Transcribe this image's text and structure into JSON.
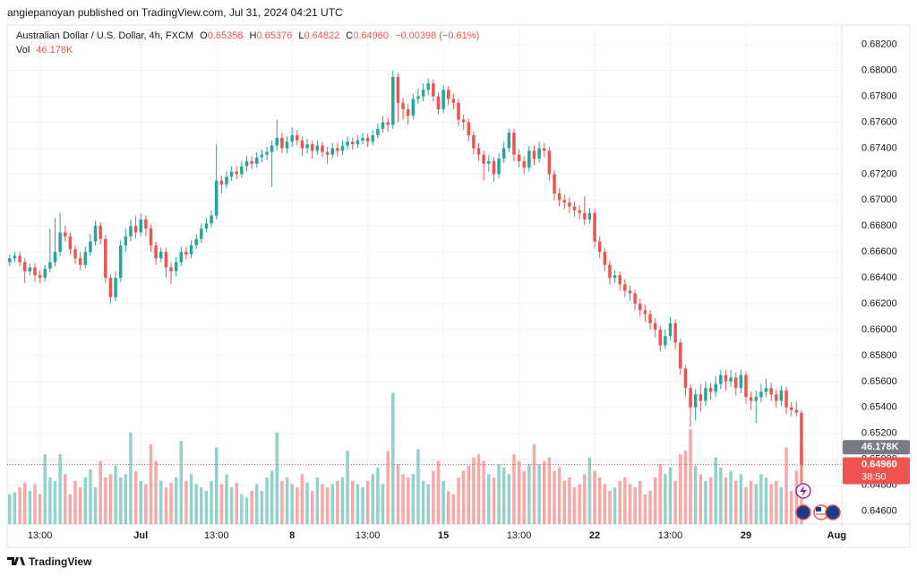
{
  "header": {
    "publisher": "angiepanoyan published on TradingView.com, Jul 31, 2024 04:21 UTC"
  },
  "chart_data": {
    "type": "candlestick",
    "title": "Australian Dollar / U.S. Dollar, 4h, FXCM",
    "legend": {
      "open_label": "O",
      "open": "0.65358",
      "high_label": "H",
      "high": "0.65376",
      "low_label": "L",
      "low": "0.64822",
      "close_label": "C",
      "close": "0.64960",
      "change": "−0.00398 (−0.61%)",
      "volume_label": "Vol",
      "volume": "46.178K"
    },
    "up_color": "#26a69a",
    "down_color": "#ef5350",
    "ylim": [
      0.645,
      0.6835
    ],
    "yticks": [
      {
        "value": 0.646,
        "label": "0.64600"
      },
      {
        "value": 0.648,
        "label": "0.64800"
      },
      {
        "value": 0.65,
        "label": "0.65000"
      },
      {
        "value": 0.652,
        "label": "0.65200"
      },
      {
        "value": 0.654,
        "label": "0.65400"
      },
      {
        "value": 0.656,
        "label": "0.65600"
      },
      {
        "value": 0.658,
        "label": "0.65800"
      },
      {
        "value": 0.66,
        "label": "0.66000"
      },
      {
        "value": 0.662,
        "label": "0.66200"
      },
      {
        "value": 0.664,
        "label": "0.66400"
      },
      {
        "value": 0.666,
        "label": "0.66600"
      },
      {
        "value": 0.668,
        "label": "0.66800"
      },
      {
        "value": 0.67,
        "label": "0.67000"
      },
      {
        "value": 0.672,
        "label": "0.67200"
      },
      {
        "value": 0.674,
        "label": "0.67400"
      },
      {
        "value": 0.676,
        "label": "0.67600"
      },
      {
        "value": 0.678,
        "label": "0.67800"
      },
      {
        "value": 0.68,
        "label": "0.68000"
      },
      {
        "value": 0.682,
        "label": "0.68200"
      }
    ],
    "xlim": [
      -0.5,
      165
    ],
    "xticks": [
      {
        "value": 6,
        "label": "13:00"
      },
      {
        "value": 26,
        "label": "Jul"
      },
      {
        "value": 41,
        "label": "13:00"
      },
      {
        "value": 56,
        "label": "8"
      },
      {
        "value": 71,
        "label": "13:00"
      },
      {
        "value": 86,
        "label": "15"
      },
      {
        "value": 101,
        "label": "13:00"
      },
      {
        "value": 116,
        "label": "22"
      },
      {
        "value": 131,
        "label": "13:00"
      },
      {
        "value": 146,
        "label": "29"
      },
      {
        "value": 164,
        "label": "Aug"
      }
    ],
    "grid": true,
    "volume_lim": [
      0,
      300000
    ],
    "volume_last_label": "46.178K",
    "last_price_label": "0.64960",
    "countdown": "38:50",
    "ohlc": [
      [
        0.6652,
        0.6658,
        0.6649,
        0.6655
      ],
      [
        0.6655,
        0.666,
        0.6652,
        0.6657
      ],
      [
        0.6657,
        0.666,
        0.6649,
        0.6652
      ],
      [
        0.6652,
        0.6655,
        0.6636,
        0.6645
      ],
      [
        0.6645,
        0.6651,
        0.6642,
        0.6648
      ],
      [
        0.6648,
        0.6651,
        0.6637,
        0.6642
      ],
      [
        0.6642,
        0.6646,
        0.6636,
        0.664
      ],
      [
        0.664,
        0.665,
        0.6637,
        0.6647
      ],
      [
        0.6647,
        0.6678,
        0.6644,
        0.6652
      ],
      [
        0.6652,
        0.6686,
        0.6649,
        0.666
      ],
      [
        0.666,
        0.669,
        0.6657,
        0.6675
      ],
      [
        0.6675,
        0.668,
        0.6668,
        0.6672
      ],
      [
        0.6672,
        0.6675,
        0.6658,
        0.6662
      ],
      [
        0.6662,
        0.6665,
        0.6651,
        0.6655
      ],
      [
        0.6655,
        0.666,
        0.6646,
        0.665
      ],
      [
        0.665,
        0.6664,
        0.6647,
        0.666
      ],
      [
        0.666,
        0.6674,
        0.6657,
        0.6668
      ],
      [
        0.6668,
        0.6684,
        0.6665,
        0.668
      ],
      [
        0.668,
        0.6683,
        0.6666,
        0.667
      ],
      [
        0.667,
        0.6673,
        0.6636,
        0.664
      ],
      [
        0.664,
        0.6643,
        0.662,
        0.6625
      ],
      [
        0.6625,
        0.6645,
        0.6622,
        0.664
      ],
      [
        0.664,
        0.6669,
        0.6637,
        0.6665
      ],
      [
        0.6665,
        0.6678,
        0.666,
        0.6672
      ],
      [
        0.6672,
        0.6685,
        0.6668,
        0.668
      ],
      [
        0.668,
        0.6688,
        0.667,
        0.6675
      ],
      [
        0.6675,
        0.669,
        0.6672,
        0.6685
      ],
      [
        0.6685,
        0.6688,
        0.6672,
        0.6678
      ],
      [
        0.6678,
        0.6681,
        0.666,
        0.6665
      ],
      [
        0.6665,
        0.6668,
        0.665,
        0.6655
      ],
      [
        0.6655,
        0.6663,
        0.6652,
        0.666
      ],
      [
        0.666,
        0.6663,
        0.664,
        0.6648
      ],
      [
        0.6648,
        0.6652,
        0.6635,
        0.6645
      ],
      [
        0.6645,
        0.6656,
        0.6641,
        0.6652
      ],
      [
        0.6652,
        0.6664,
        0.6649,
        0.666
      ],
      [
        0.666,
        0.6664,
        0.6654,
        0.6658
      ],
      [
        0.6658,
        0.6669,
        0.6655,
        0.6665
      ],
      [
        0.6665,
        0.6674,
        0.6662,
        0.667
      ],
      [
        0.667,
        0.6682,
        0.6667,
        0.6678
      ],
      [
        0.6678,
        0.6686,
        0.6675,
        0.6682
      ],
      [
        0.6682,
        0.6692,
        0.6679,
        0.6688
      ],
      [
        0.6688,
        0.6743,
        0.6685,
        0.6715
      ],
      [
        0.6715,
        0.6719,
        0.6705,
        0.6712
      ],
      [
        0.6712,
        0.6722,
        0.6709,
        0.6718
      ],
      [
        0.6718,
        0.6726,
        0.6715,
        0.6722
      ],
      [
        0.6722,
        0.6726,
        0.6716,
        0.672
      ],
      [
        0.672,
        0.673,
        0.6717,
        0.6726
      ],
      [
        0.6726,
        0.6734,
        0.6722,
        0.673
      ],
      [
        0.673,
        0.6734,
        0.6724,
        0.6728
      ],
      [
        0.6728,
        0.6737,
        0.6725,
        0.6733
      ],
      [
        0.6733,
        0.6739,
        0.6729,
        0.6735
      ],
      [
        0.6735,
        0.6741,
        0.6731,
        0.6737
      ],
      [
        0.6737,
        0.6746,
        0.671,
        0.6742
      ],
      [
        0.6742,
        0.6762,
        0.6738,
        0.6748
      ],
      [
        0.6748,
        0.6752,
        0.6736,
        0.674
      ],
      [
        0.674,
        0.6749,
        0.6736,
        0.6745
      ],
      [
        0.6745,
        0.6756,
        0.6741,
        0.675
      ],
      [
        0.675,
        0.6754,
        0.6742,
        0.6746
      ],
      [
        0.6746,
        0.6749,
        0.6734,
        0.674
      ],
      [
        0.674,
        0.6747,
        0.6736,
        0.6743
      ],
      [
        0.6743,
        0.6746,
        0.6732,
        0.6738
      ],
      [
        0.6738,
        0.6746,
        0.6735,
        0.6742
      ],
      [
        0.6742,
        0.6745,
        0.6733,
        0.6737
      ],
      [
        0.6737,
        0.6741,
        0.6728,
        0.6735
      ],
      [
        0.6735,
        0.6744,
        0.6732,
        0.674
      ],
      [
        0.674,
        0.6744,
        0.6734,
        0.6738
      ],
      [
        0.6738,
        0.6746,
        0.6735,
        0.6742
      ],
      [
        0.6742,
        0.6749,
        0.6739,
        0.6745
      ],
      [
        0.6745,
        0.6748,
        0.6739,
        0.6743
      ],
      [
        0.6743,
        0.675,
        0.674,
        0.6746
      ],
      [
        0.6746,
        0.6752,
        0.6743,
        0.6748
      ],
      [
        0.6748,
        0.6751,
        0.6741,
        0.6745
      ],
      [
        0.6745,
        0.6754,
        0.6742,
        0.675
      ],
      [
        0.675,
        0.6759,
        0.6747,
        0.6755
      ],
      [
        0.6755,
        0.6765,
        0.6752,
        0.676
      ],
      [
        0.676,
        0.6764,
        0.6753,
        0.6758
      ],
      [
        0.6758,
        0.68,
        0.6755,
        0.6795
      ],
      [
        0.6795,
        0.6798,
        0.676,
        0.6775
      ],
      [
        0.6775,
        0.6779,
        0.6762,
        0.677
      ],
      [
        0.677,
        0.6774,
        0.6758,
        0.6765
      ],
      [
        0.6765,
        0.6782,
        0.6762,
        0.6778
      ],
      [
        0.6778,
        0.6786,
        0.6774,
        0.678
      ],
      [
        0.678,
        0.679,
        0.6776,
        0.6785
      ],
      [
        0.6785,
        0.6794,
        0.6781,
        0.679
      ],
      [
        0.679,
        0.6793,
        0.6776,
        0.678
      ],
      [
        0.678,
        0.6783,
        0.6766,
        0.677
      ],
      [
        0.677,
        0.6789,
        0.6767,
        0.6785
      ],
      [
        0.6785,
        0.6788,
        0.6773,
        0.6778
      ],
      [
        0.6778,
        0.6782,
        0.677,
        0.6775
      ],
      [
        0.6775,
        0.6778,
        0.6757,
        0.6762
      ],
      [
        0.6762,
        0.6766,
        0.6754,
        0.676
      ],
      [
        0.676,
        0.6763,
        0.6745,
        0.675
      ],
      [
        0.675,
        0.6753,
        0.6735,
        0.674
      ],
      [
        0.674,
        0.6744,
        0.673,
        0.6735
      ],
      [
        0.6735,
        0.6738,
        0.6715,
        0.6728
      ],
      [
        0.6728,
        0.6735,
        0.6722,
        0.673
      ],
      [
        0.673,
        0.6733,
        0.6714,
        0.672
      ],
      [
        0.672,
        0.6736,
        0.6717,
        0.6732
      ],
      [
        0.6732,
        0.6745,
        0.6729,
        0.674
      ],
      [
        0.674,
        0.6755,
        0.6737,
        0.6752
      ],
      [
        0.6752,
        0.6755,
        0.673,
        0.6735
      ],
      [
        0.6735,
        0.6739,
        0.6725,
        0.673
      ],
      [
        0.673,
        0.6734,
        0.672,
        0.6725
      ],
      [
        0.6725,
        0.6742,
        0.6722,
        0.6738
      ],
      [
        0.6738,
        0.6742,
        0.6727,
        0.6732
      ],
      [
        0.6732,
        0.6745,
        0.6729,
        0.674
      ],
      [
        0.674,
        0.6744,
        0.6733,
        0.6738
      ],
      [
        0.6738,
        0.6741,
        0.6715,
        0.672
      ],
      [
        0.672,
        0.6723,
        0.67,
        0.6705
      ],
      [
        0.6705,
        0.6709,
        0.6695,
        0.67
      ],
      [
        0.67,
        0.6704,
        0.6693,
        0.6698
      ],
      [
        0.6698,
        0.6702,
        0.669,
        0.6695
      ],
      [
        0.6695,
        0.6699,
        0.6687,
        0.6692
      ],
      [
        0.6692,
        0.6696,
        0.6685,
        0.669
      ],
      [
        0.669,
        0.6703,
        0.6681,
        0.6685
      ],
      [
        0.6685,
        0.6694,
        0.6682,
        0.669
      ],
      [
        0.669,
        0.6693,
        0.6663,
        0.6668
      ],
      [
        0.6668,
        0.6672,
        0.6655,
        0.666
      ],
      [
        0.666,
        0.6663,
        0.6645,
        0.665
      ],
      [
        0.665,
        0.6653,
        0.6635,
        0.664
      ],
      [
        0.664,
        0.6646,
        0.6636,
        0.6642
      ],
      [
        0.6642,
        0.6645,
        0.663,
        0.6635
      ],
      [
        0.6635,
        0.6639,
        0.6625,
        0.663
      ],
      [
        0.663,
        0.6634,
        0.6622,
        0.6628
      ],
      [
        0.6628,
        0.6631,
        0.6615,
        0.662
      ],
      [
        0.662,
        0.6624,
        0.661,
        0.6615
      ],
      [
        0.6615,
        0.6619,
        0.6606,
        0.6612
      ],
      [
        0.6612,
        0.6615,
        0.66,
        0.6605
      ],
      [
        0.6605,
        0.6609,
        0.6594,
        0.66
      ],
      [
        0.66,
        0.6603,
        0.6583,
        0.6588
      ],
      [
        0.6588,
        0.66,
        0.6585,
        0.6595
      ],
      [
        0.6595,
        0.661,
        0.6592,
        0.6605
      ],
      [
        0.6605,
        0.6608,
        0.6585,
        0.659
      ],
      [
        0.659,
        0.6593,
        0.6565,
        0.657
      ],
      [
        0.657,
        0.6573,
        0.6548,
        0.6555
      ],
      [
        0.6555,
        0.6558,
        0.6525,
        0.654
      ],
      [
        0.654,
        0.6554,
        0.653,
        0.655
      ],
      [
        0.655,
        0.6558,
        0.6537,
        0.6545
      ],
      [
        0.6545,
        0.656,
        0.6541,
        0.6555
      ],
      [
        0.6555,
        0.6559,
        0.6546,
        0.6552
      ],
      [
        0.6552,
        0.6564,
        0.6548,
        0.6558
      ],
      [
        0.6558,
        0.6569,
        0.6554,
        0.6565
      ],
      [
        0.6565,
        0.6569,
        0.6553,
        0.656
      ],
      [
        0.656,
        0.6569,
        0.6556,
        0.6563
      ],
      [
        0.6563,
        0.6567,
        0.6549,
        0.6555
      ],
      [
        0.6555,
        0.6569,
        0.6551,
        0.6565
      ],
      [
        0.6565,
        0.6568,
        0.6543,
        0.6548
      ],
      [
        0.6548,
        0.6552,
        0.6538,
        0.6545
      ],
      [
        0.6545,
        0.6553,
        0.6528,
        0.6548
      ],
      [
        0.6548,
        0.6558,
        0.6544,
        0.6552
      ],
      [
        0.6552,
        0.6562,
        0.6548,
        0.6555
      ],
      [
        0.6555,
        0.6559,
        0.6545,
        0.655
      ],
      [
        0.655,
        0.6554,
        0.654,
        0.6545
      ],
      [
        0.6545,
        0.6557,
        0.6541,
        0.6553
      ],
      [
        0.6553,
        0.6556,
        0.6535,
        0.654
      ],
      [
        0.654,
        0.6544,
        0.6533,
        0.6538
      ],
      [
        0.6538,
        0.6544,
        0.6533,
        0.6536
      ],
      [
        0.65358,
        0.65376,
        0.64822,
        0.6496
      ]
    ],
    "volumes": [
      18000,
      19000,
      22000,
      25000,
      20000,
      24000,
      18000,
      42000,
      28000,
      26000,
      42000,
      30000,
      18000,
      26000,
      22000,
      28000,
      33000,
      22000,
      38000,
      28000,
      30000,
      35000,
      28000,
      30000,
      55000,
      32000,
      26000,
      24000,
      48000,
      38000,
      26000,
      22000,
      25000,
      28000,
      50000,
      26000,
      30000,
      24000,
      22000,
      20000,
      26000,
      46000,
      24000,
      30000,
      22000,
      25000,
      18000,
      16000,
      20000,
      24000,
      20000,
      28000,
      32000,
      55000,
      26000,
      28000,
      24000,
      22000,
      30000,
      25000,
      20000,
      28000,
      24000,
      22000,
      24000,
      26000,
      28000,
      44000,
      26000,
      24000,
      22000,
      26000,
      30000,
      34000,
      24000,
      44000,
      79000,
      36000,
      30000,
      28000,
      30000,
      45000,
      26000,
      24000,
      32000,
      38000,
      26000,
      20000,
      18000,
      28000,
      32000,
      35000,
      40000,
      42000,
      38000,
      30000,
      28000,
      36000,
      34000,
      30000,
      42000,
      38000,
      32000,
      36000,
      48000,
      36000,
      38000,
      40000,
      32000,
      34000,
      26000,
      28000,
      22000,
      24000,
      30000,
      40000,
      32000,
      28000,
      24000,
      20000,
      22000,
      26000,
      28000,
      24000,
      22000,
      26000,
      18000,
      20000,
      28000,
      36000,
      30000,
      34000,
      26000,
      42000,
      44000,
      57000,
      35000,
      30000,
      26000,
      28000,
      40000,
      34000,
      28000,
      32000,
      26000,
      30000,
      22000,
      26000,
      24000,
      30000,
      28000,
      24000,
      26000,
      22000,
      46000,
      20000,
      32000,
      46178
    ]
  },
  "footer": {
    "brand": "TradingView"
  }
}
